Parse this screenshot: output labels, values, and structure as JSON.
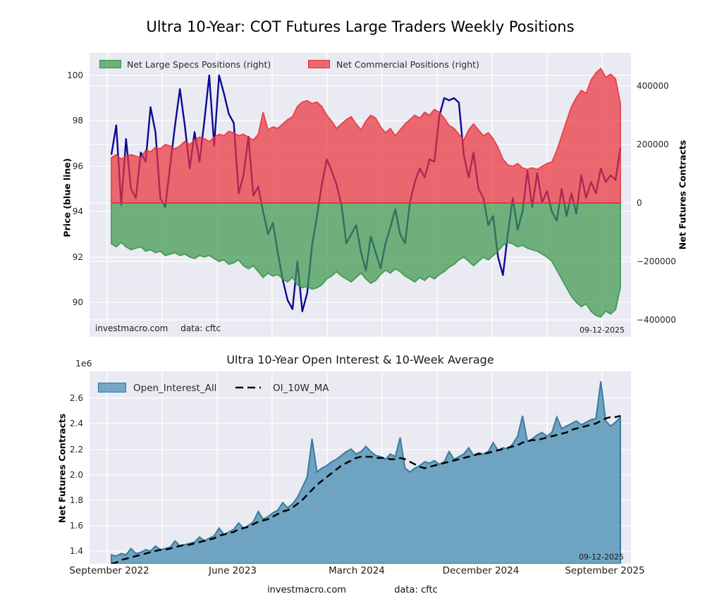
{
  "figure": {
    "title": "Ultra 10-Year: COT Futures Large Traders Weekly Positions",
    "source_note": "investmacro.com",
    "data_note": "data: cftc",
    "report_date": "09-12-2025"
  },
  "colors": {
    "plot_bg": "#eaeaf2",
    "grid": "#ffffff",
    "price_line": "#0a0a8f",
    "specs_fill": "62,152,78",
    "specs_edge": "52,148,70",
    "comm_fill": "235,52,60",
    "comm_edge": "233,48,56",
    "oi_fill": "74,142,180",
    "oi_edge": "47,116,152",
    "ma_line": "#000000"
  },
  "chart_data": [
    {
      "type": "area",
      "title": "Ultra 10-Year: COT Futures Large Traders Weekly Positions",
      "ylabel_left": "Price (blue line)",
      "ylabel_right": "Net Futures Contracts",
      "ylim_left": [
        88.5,
        101.0
      ],
      "ylim_right": [
        -460000,
        513000
      ],
      "yticks_left": [
        "100",
        "98",
        "96",
        "94",
        "92",
        "90"
      ],
      "yticks_right": [
        "400000",
        "200000",
        "0",
        "−200000",
        "−400000"
      ],
      "grid": true,
      "legend_position": "upper left",
      "legend": [
        {
          "label": "Net Large Specs Positions (right)"
        },
        {
          "label": "Net Commercial Positions (right)"
        }
      ],
      "annotations": {
        "source": "investmacro.com",
        "data": "data: cftc",
        "date": "09-12-2025"
      },
      "series": [
        {
          "name": "Price",
          "axis": "left",
          "type": "line",
          "values": [
            96.5,
            97.8,
            94.3,
            97.2,
            95.0,
            94.6,
            96.6,
            96.2,
            98.6,
            97.5,
            94.6,
            94.2,
            96.0,
            97.8,
            99.4,
            97.8,
            95.9,
            97.5,
            96.2,
            98.0,
            100.0,
            96.9,
            100.0,
            99.2,
            98.3,
            97.9,
            94.8,
            95.6,
            97.3,
            94.7,
            95.1,
            94.0,
            93.0,
            93.5,
            92.2,
            91.0,
            90.1,
            89.7,
            91.8,
            89.6,
            90.4,
            92.5,
            93.8,
            95.2,
            96.3,
            95.8,
            95.2,
            94.3,
            92.6,
            93.0,
            93.4,
            92.2,
            91.4,
            92.9,
            92.2,
            91.5,
            92.6,
            93.3,
            94.1,
            93.0,
            92.6,
            94.4,
            95.3,
            95.9,
            95.5,
            96.3,
            96.2,
            98.2,
            99.0,
            98.9,
            99.0,
            98.8,
            96.5,
            95.5,
            96.6,
            95.0,
            94.6,
            93.4,
            93.8,
            92.0,
            91.2,
            93.0,
            94.6,
            93.2,
            94.0,
            95.8,
            94.2,
            95.7,
            94.4,
            94.9,
            94.0,
            93.6,
            95.0,
            93.8,
            94.8,
            93.9,
            95.6,
            94.6,
            95.3,
            94.8,
            95.9,
            95.3,
            95.6,
            95.4,
            96.8
          ]
        },
        {
          "name": "Net Large Specs Positions (right)",
          "axis": "right",
          "type": "area",
          "values": [
            -140000,
            -150000,
            -135000,
            -150000,
            -160000,
            -155000,
            -150000,
            -165000,
            -160000,
            -170000,
            -165000,
            -180000,
            -175000,
            -170000,
            -180000,
            -175000,
            -185000,
            -190000,
            -180000,
            -185000,
            -180000,
            -190000,
            -200000,
            -195000,
            -210000,
            -205000,
            -195000,
            -215000,
            -225000,
            -215000,
            -235000,
            -255000,
            -240000,
            -250000,
            -245000,
            -260000,
            -270000,
            -255000,
            -280000,
            -290000,
            -285000,
            -295000,
            -290000,
            -280000,
            -260000,
            -250000,
            -235000,
            -250000,
            -260000,
            -270000,
            -255000,
            -240000,
            -260000,
            -275000,
            -265000,
            -245000,
            -230000,
            -240000,
            -225000,
            -235000,
            -250000,
            -260000,
            -270000,
            -255000,
            -265000,
            -250000,
            -260000,
            -245000,
            -235000,
            -220000,
            -210000,
            -195000,
            -185000,
            -200000,
            -215000,
            -200000,
            -185000,
            -195000,
            -180000,
            -165000,
            -145000,
            -135000,
            -140000,
            -150000,
            -145000,
            -155000,
            -160000,
            -165000,
            -175000,
            -185000,
            -200000,
            -230000,
            -260000,
            -290000,
            -320000,
            -340000,
            -355000,
            -345000,
            -370000,
            -385000,
            -390000,
            -370000,
            -380000,
            -365000,
            -290000
          ]
        },
        {
          "name": "Net Commercial Positions (right)",
          "axis": "right",
          "type": "area",
          "values": [
            155000,
            165000,
            150000,
            160000,
            165000,
            160000,
            155000,
            180000,
            175000,
            190000,
            185000,
            200000,
            195000,
            185000,
            195000,
            210000,
            200000,
            215000,
            225000,
            220000,
            210000,
            225000,
            235000,
            230000,
            245000,
            240000,
            230000,
            235000,
            225000,
            215000,
            235000,
            310000,
            250000,
            260000,
            255000,
            270000,
            285000,
            295000,
            330000,
            345000,
            350000,
            340000,
            345000,
            330000,
            300000,
            280000,
            255000,
            270000,
            285000,
            295000,
            270000,
            250000,
            280000,
            300000,
            290000,
            260000,
            240000,
            255000,
            230000,
            250000,
            270000,
            285000,
            300000,
            290000,
            310000,
            300000,
            320000,
            310000,
            290000,
            265000,
            255000,
            235000,
            215000,
            250000,
            270000,
            250000,
            230000,
            240000,
            220000,
            190000,
            150000,
            130000,
            125000,
            135000,
            120000,
            115000,
            120000,
            115000,
            125000,
            135000,
            140000,
            180000,
            230000,
            280000,
            330000,
            360000,
            385000,
            375000,
            420000,
            445000,
            460000,
            430000,
            440000,
            425000,
            340000
          ]
        }
      ]
    },
    {
      "type": "area",
      "title": "Ultra 10-Year Open Interest & 10-Week Average",
      "ylabel": "Net Futures Contracts",
      "offset_label": "1e6",
      "ylim": [
        1.3,
        2.81
      ],
      "yticks": [
        "2.6",
        "2.4",
        "2.2",
        "2.0",
        "1.8",
        "1.6",
        "1.4"
      ],
      "xticklabels": [
        "September 2022",
        "June 2023",
        "March 2024",
        "December 2024",
        "September 2025"
      ],
      "grid": true,
      "legend_position": "upper left",
      "legend": [
        {
          "label": "Open_Interest_All"
        },
        {
          "label": "OI_10W_MA"
        }
      ],
      "annotations": {
        "date": "09-12-2025"
      },
      "series": [
        {
          "name": "Open_Interest_All",
          "type": "area",
          "unit": "1e6 contracts",
          "values": [
            1.37,
            1.36,
            1.38,
            1.37,
            1.42,
            1.38,
            1.39,
            1.41,
            1.4,
            1.44,
            1.41,
            1.42,
            1.43,
            1.48,
            1.44,
            1.45,
            1.46,
            1.47,
            1.51,
            1.48,
            1.5,
            1.52,
            1.58,
            1.53,
            1.55,
            1.57,
            1.62,
            1.58,
            1.6,
            1.63,
            1.71,
            1.65,
            1.67,
            1.7,
            1.72,
            1.78,
            1.74,
            1.77,
            1.82,
            1.9,
            1.98,
            2.28,
            2.02,
            2.05,
            2.07,
            2.1,
            2.12,
            2.15,
            2.18,
            2.2,
            2.16,
            2.18,
            2.22,
            2.18,
            2.15,
            2.14,
            2.12,
            2.16,
            2.14,
            2.29,
            2.05,
            2.02,
            2.05,
            2.07,
            2.1,
            2.09,
            2.11,
            2.08,
            2.1,
            2.18,
            2.12,
            2.14,
            2.16,
            2.21,
            2.15,
            2.17,
            2.16,
            2.18,
            2.25,
            2.19,
            2.21,
            2.2,
            2.24,
            2.3,
            2.46,
            2.26,
            2.28,
            2.31,
            2.33,
            2.3,
            2.33,
            2.45,
            2.36,
            2.38,
            2.4,
            2.42,
            2.39,
            2.41,
            2.43,
            2.44,
            2.73,
            2.42,
            2.38,
            2.41,
            2.45
          ]
        },
        {
          "name": "OI_10W_MA",
          "type": "dashed-line",
          "unit": "1e6 contracts",
          "values": [
            1.3,
            1.31,
            1.33,
            1.34,
            1.35,
            1.36,
            1.37,
            1.38,
            1.39,
            1.4,
            1.41,
            1.41,
            1.42,
            1.43,
            1.44,
            1.45,
            1.45,
            1.46,
            1.47,
            1.48,
            1.49,
            1.5,
            1.52,
            1.53,
            1.54,
            1.55,
            1.57,
            1.58,
            1.59,
            1.61,
            1.63,
            1.64,
            1.65,
            1.67,
            1.69,
            1.71,
            1.72,
            1.74,
            1.77,
            1.8,
            1.84,
            1.88,
            1.92,
            1.95,
            1.98,
            2.01,
            2.04,
            2.07,
            2.09,
            2.11,
            2.13,
            2.14,
            2.14,
            2.14,
            2.13,
            2.13,
            2.13,
            2.12,
            2.12,
            2.13,
            2.12,
            2.1,
            2.08,
            2.06,
            2.05,
            2.06,
            2.07,
            2.08,
            2.09,
            2.1,
            2.11,
            2.12,
            2.13,
            2.14,
            2.15,
            2.16,
            2.16,
            2.17,
            2.18,
            2.19,
            2.2,
            2.21,
            2.22,
            2.23,
            2.25,
            2.26,
            2.27,
            2.27,
            2.28,
            2.29,
            2.3,
            2.31,
            2.32,
            2.33,
            2.35,
            2.36,
            2.37,
            2.38,
            2.39,
            2.4,
            2.42,
            2.44,
            2.45,
            2.45,
            2.46
          ]
        }
      ]
    }
  ]
}
